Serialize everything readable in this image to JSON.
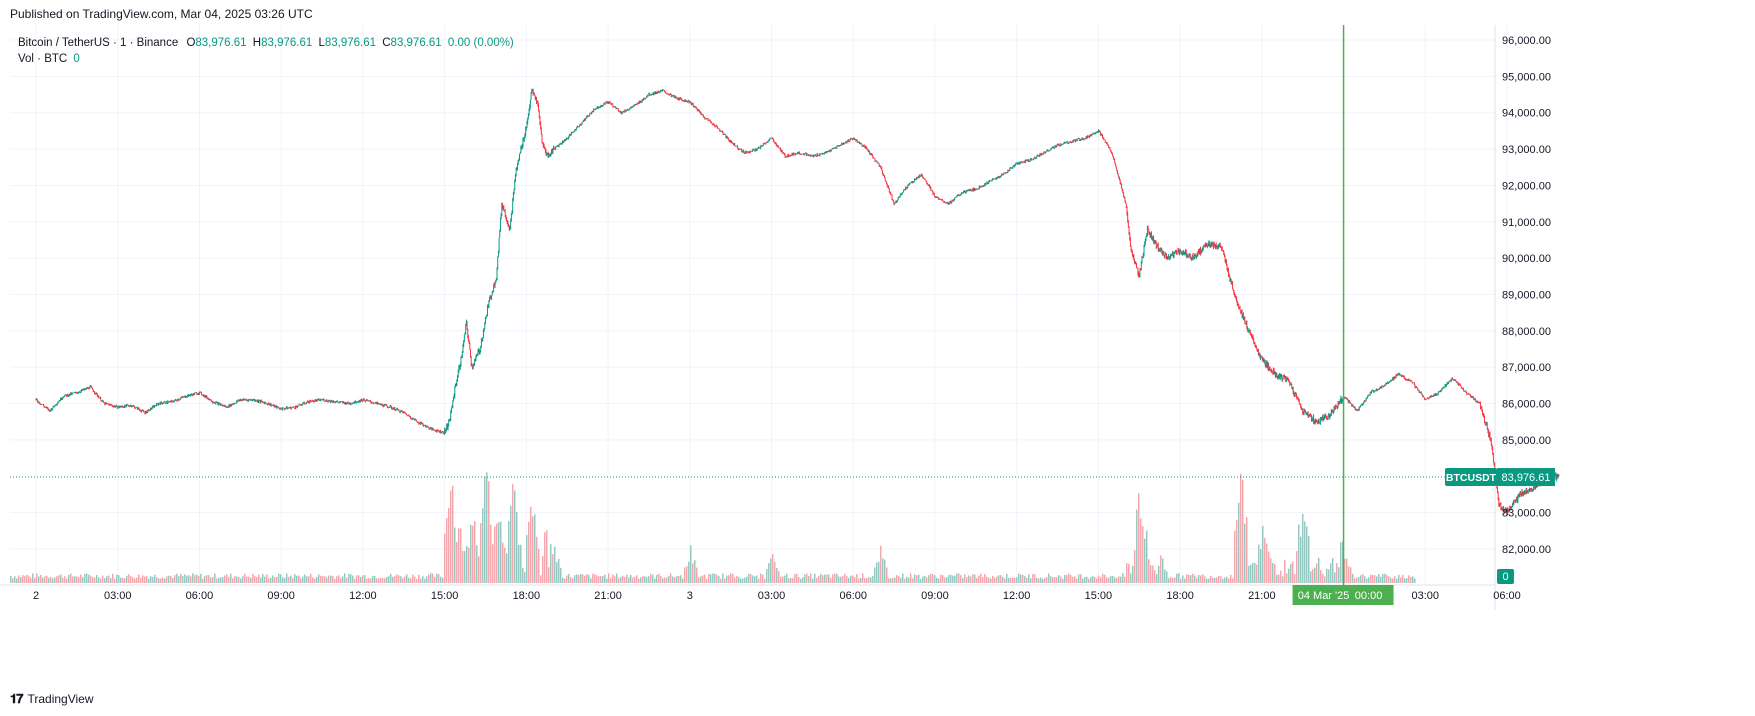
{
  "header": {
    "published": "Published on TradingView.com, Mar 04, 2025 03:26 UTC"
  },
  "legend": {
    "symbol": "Bitcoin / TetherUS · 1 · Binance",
    "o_label": "O",
    "o_value": "83,976.61",
    "h_label": "H",
    "h_value": "83,976.61",
    "l_label": "L",
    "l_value": "83,976.61",
    "c_label": "C",
    "c_value": "83,976.61",
    "change": "0.00 (0.00%)",
    "vol_label": "Vol · BTC",
    "vol_value": "0"
  },
  "price_tag": {
    "ticker": "BTCUSDT",
    "value": "83,976.61"
  },
  "volume_tag": {
    "value": "0"
  },
  "crosshair_label": {
    "date": "04 Mar '25",
    "time": "00:00"
  },
  "footer": {
    "brand": "TradingView"
  },
  "colors": {
    "up": "#089981",
    "down": "#f23645",
    "up_vol": "#95c9c1",
    "down_vol": "#f4a8ad",
    "crosshair": "#4caf50",
    "grid": "#f0f3fa",
    "axis_text": "#131722"
  },
  "chart_data": {
    "type": "candlestick",
    "interval": "1 minute",
    "x_range": [
      "Mar 2 00:00",
      "Mar 4 06:00"
    ],
    "x_ticks": [
      "2",
      "03:00",
      "06:00",
      "09:00",
      "12:00",
      "15:00",
      "18:00",
      "21:00",
      "3",
      "03:00",
      "06:00",
      "09:00",
      "12:00",
      "15:00",
      "18:00",
      "21:00",
      "00:00",
      "03:00",
      "06:00"
    ],
    "y_ticks": [
      "96,000.00",
      "95,000.00",
      "94,000.00",
      "93,000.00",
      "92,000.00",
      "91,000.00",
      "90,000.00",
      "89,000.00",
      "88,000.00",
      "87,000.00",
      "86,000.00",
      "85,000.00",
      "83,000.00",
      "82,000.00"
    ],
    "ylim": [
      81000,
      96600
    ],
    "last_price": 83976.61,
    "close_path": [
      [
        0,
        86100
      ],
      [
        0.5,
        85800
      ],
      [
        1,
        86200
      ],
      [
        1.5,
        86300
      ],
      [
        2,
        86450
      ],
      [
        2.5,
        86000
      ],
      [
        3,
        85900
      ],
      [
        3.5,
        85950
      ],
      [
        4,
        85750
      ],
      [
        4.5,
        86000
      ],
      [
        5,
        86050
      ],
      [
        5.5,
        86200
      ],
      [
        6,
        86300
      ],
      [
        6.5,
        86050
      ],
      [
        7,
        85900
      ],
      [
        7.5,
        86100
      ],
      [
        8,
        86100
      ],
      [
        8.5,
        86000
      ],
      [
        9,
        85850
      ],
      [
        9.5,
        85900
      ],
      [
        10,
        86050
      ],
      [
        10.5,
        86100
      ],
      [
        11,
        86050
      ],
      [
        11.5,
        86000
      ],
      [
        12,
        86100
      ],
      [
        12.5,
        86000
      ],
      [
        13,
        85900
      ],
      [
        13.5,
        85750
      ],
      [
        14,
        85500
      ],
      [
        14.5,
        85300
      ],
      [
        15,
        85200
      ],
      [
        15.2,
        85600
      ],
      [
        15.4,
        86500
      ],
      [
        15.6,
        87200
      ],
      [
        15.8,
        88200
      ],
      [
        16,
        87000
      ],
      [
        16.3,
        87500
      ],
      [
        16.6,
        88700
      ],
      [
        16.9,
        89500
      ],
      [
        17.1,
        91500
      ],
      [
        17.4,
        90800
      ],
      [
        17.6,
        92300
      ],
      [
        17.8,
        93000
      ],
      [
        18,
        93600
      ],
      [
        18.2,
        94600
      ],
      [
        18.4,
        94300
      ],
      [
        18.6,
        93100
      ],
      [
        18.8,
        92800
      ],
      [
        19,
        93000
      ],
      [
        19.5,
        93300
      ],
      [
        20,
        93700
      ],
      [
        20.5,
        94100
      ],
      [
        21,
        94300
      ],
      [
        21.5,
        94000
      ],
      [
        22,
        94200
      ],
      [
        22.5,
        94500
      ],
      [
        23,
        94600
      ],
      [
        23.5,
        94400
      ],
      [
        24,
        94300
      ],
      [
        24.5,
        93900
      ],
      [
        25,
        93600
      ],
      [
        25.5,
        93200
      ],
      [
        26,
        92900
      ],
      [
        26.5,
        93000
      ],
      [
        27,
        93300
      ],
      [
        27.5,
        92800
      ],
      [
        28,
        92900
      ],
      [
        28.5,
        92800
      ],
      [
        29,
        92900
      ],
      [
        29.5,
        93100
      ],
      [
        30,
        93300
      ],
      [
        30.5,
        93000
      ],
      [
        31,
        92500
      ],
      [
        31.5,
        91500
      ],
      [
        32,
        92000
      ],
      [
        32.5,
        92300
      ],
      [
        33,
        91700
      ],
      [
        33.5,
        91500
      ],
      [
        34,
        91800
      ],
      [
        34.5,
        91900
      ],
      [
        35,
        92100
      ],
      [
        35.5,
        92300
      ],
      [
        36,
        92600
      ],
      [
        36.5,
        92700
      ],
      [
        37,
        92900
      ],
      [
        37.5,
        93100
      ],
      [
        38,
        93200
      ],
      [
        38.5,
        93300
      ],
      [
        39,
        93500
      ],
      [
        39.5,
        92900
      ],
      [
        40,
        91500
      ],
      [
        40.2,
        90200
      ],
      [
        40.5,
        89500
      ],
      [
        40.8,
        90800
      ],
      [
        41,
        90500
      ],
      [
        41.5,
        90000
      ],
      [
        42,
        90200
      ],
      [
        42.5,
        90000
      ],
      [
        43,
        90400
      ],
      [
        43.5,
        90300
      ],
      [
        44,
        89000
      ],
      [
        44.5,
        88000
      ],
      [
        45,
        87200
      ],
      [
        45.5,
        86800
      ],
      [
        46,
        86600
      ],
      [
        46.5,
        85800
      ],
      [
        47,
        85500
      ],
      [
        47.5,
        85700
      ],
      [
        48,
        86200
      ],
      [
        48.5,
        85800
      ],
      [
        49,
        86300
      ],
      [
        49.5,
        86500
      ],
      [
        50,
        86800
      ],
      [
        50.5,
        86600
      ],
      [
        51,
        86100
      ],
      [
        51.5,
        86300
      ],
      [
        52,
        86700
      ],
      [
        52.5,
        86300
      ],
      [
        53,
        86000
      ],
      [
        53.4,
        85000
      ],
      [
        53.7,
        83200
      ],
      [
        54,
        83000
      ],
      [
        54.5,
        83500
      ],
      [
        55,
        83700
      ],
      [
        55.5,
        84000
      ],
      [
        55.9,
        83976.61
      ]
    ],
    "volume_spikes": [
      [
        15.2,
        0.95
      ],
      [
        15.5,
        0.55
      ],
      [
        16,
        0.6
      ],
      [
        16.5,
        0.95
      ],
      [
        16.9,
        0.7
      ],
      [
        17.5,
        0.85
      ],
      [
        18.2,
        0.75
      ],
      [
        19,
        0.3
      ],
      [
        24,
        0.28
      ],
      [
        27,
        0.22
      ],
      [
        31,
        0.28
      ],
      [
        40.5,
        0.62
      ],
      [
        44.2,
        0.85
      ],
      [
        45,
        0.4
      ],
      [
        46.5,
        0.62
      ],
      [
        48,
        0.3
      ],
      [
        53.6,
        0.62
      ],
      [
        53.8,
        0.35
      ]
    ]
  }
}
